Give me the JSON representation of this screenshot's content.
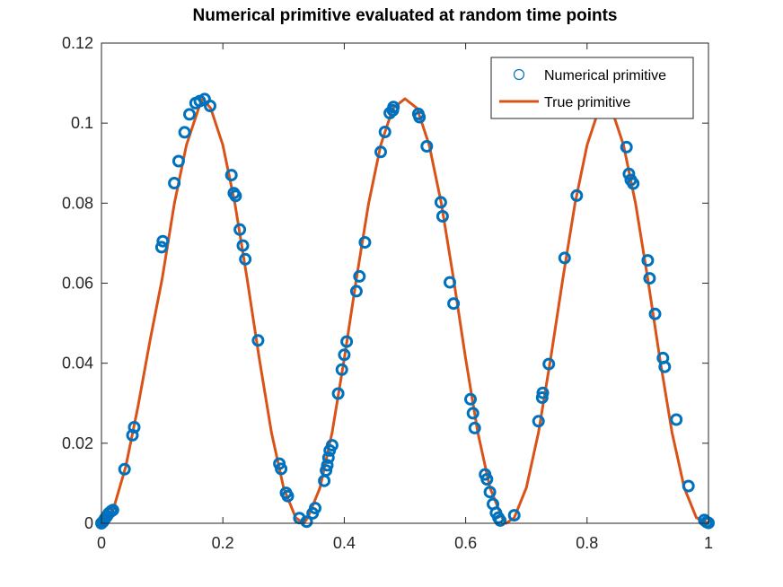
{
  "chart_data": {
    "type": "scatter",
    "title": "Numerical primitive evaluated at random time points",
    "xlabel": "",
    "ylabel": "",
    "xlim": [
      0,
      1
    ],
    "ylim": [
      0,
      0.12
    ],
    "xticks": [
      0,
      0.2,
      0.4,
      0.6,
      0.8,
      1
    ],
    "xtick_labels": [
      "0",
      "0.2",
      "0.4",
      "0.6",
      "0.8",
      "1"
    ],
    "yticks": [
      0,
      0.02,
      0.04,
      0.06,
      0.08,
      0.1,
      0.12
    ],
    "ytick_labels": [
      "0",
      "0.02",
      "0.04",
      "0.06",
      "0.08",
      "0.1",
      "0.12"
    ],
    "grid": false,
    "legend_position": "top-right",
    "series": [
      {
        "name": "Numerical primitive",
        "style": "markers",
        "marker": "circle",
        "color": "#0072BD",
        "x": [
          0.0,
          0.002,
          0.004,
          0.006,
          0.009,
          0.012,
          0.016,
          0.019,
          0.038,
          0.051,
          0.054,
          0.099,
          0.101,
          0.12,
          0.127,
          0.137,
          0.145,
          0.155,
          0.162,
          0.17,
          0.179,
          0.214,
          0.218,
          0.221,
          0.228,
          0.233,
          0.237,
          0.258,
          0.293,
          0.296,
          0.304,
          0.307,
          0.326,
          0.338,
          0.348,
          0.352,
          0.367,
          0.37,
          0.372,
          0.374,
          0.376,
          0.38,
          0.39,
          0.396,
          0.4,
          0.404,
          0.42,
          0.425,
          0.434,
          0.46,
          0.467,
          0.475,
          0.481,
          0.48,
          0.522,
          0.524,
          0.536,
          0.559,
          0.562,
          0.574,
          0.58,
          0.608,
          0.612,
          0.615,
          0.632,
          0.635,
          0.64,
          0.645,
          0.65,
          0.654,
          0.657,
          0.68,
          0.72,
          0.726,
          0.727,
          0.737,
          0.763,
          0.783,
          0.865,
          0.869,
          0.872,
          0.876,
          0.9,
          0.903,
          0.912,
          0.925,
          0.928,
          0.947,
          0.967,
          0.993,
          0.997,
          1.0
        ],
        "y": [
          0.0,
          0.0003,
          0.0007,
          0.0012,
          0.0018,
          0.0025,
          0.003,
          0.0033,
          0.0135,
          0.022,
          0.024,
          0.069,
          0.0705,
          0.085,
          0.0905,
          0.0977,
          0.1022,
          0.105,
          0.1055,
          0.106,
          0.1043,
          0.087,
          0.0825,
          0.0818,
          0.0734,
          0.0694,
          0.066,
          0.0457,
          0.0149,
          0.0136,
          0.0076,
          0.0068,
          0.0013,
          0.0004,
          0.0025,
          0.0038,
          0.0106,
          0.0132,
          0.0145,
          0.0164,
          0.0182,
          0.0195,
          0.0324,
          0.0384,
          0.0421,
          0.0454,
          0.058,
          0.0617,
          0.0702,
          0.0928,
          0.0978,
          0.1025,
          0.104,
          0.1032,
          0.1023,
          0.1015,
          0.0942,
          0.0802,
          0.0767,
          0.0602,
          0.0549,
          0.031,
          0.0275,
          0.0238,
          0.0122,
          0.011,
          0.0078,
          0.0048,
          0.0026,
          0.0014,
          0.0007,
          0.002,
          0.0255,
          0.0314,
          0.0326,
          0.0398,
          0.0663,
          0.0819,
          0.094,
          0.0873,
          0.0858,
          0.0849,
          0.0657,
          0.0612,
          0.0523,
          0.0413,
          0.0391,
          0.0259,
          0.0093,
          0.0008,
          0.0003,
          0.0001
        ]
      },
      {
        "name": "True primitive",
        "style": "line",
        "color": "#D95319",
        "x": [
          0.0,
          0.02,
          0.04,
          0.06,
          0.08,
          0.1,
          0.12,
          0.14,
          0.16,
          0.1667,
          0.18,
          0.2,
          0.22,
          0.24,
          0.26,
          0.28,
          0.3,
          0.32,
          0.3333,
          0.34,
          0.36,
          0.38,
          0.4,
          0.42,
          0.44,
          0.46,
          0.48,
          0.5,
          0.52,
          0.54,
          0.56,
          0.58,
          0.6,
          0.62,
          0.64,
          0.66,
          0.6667,
          0.68,
          0.7,
          0.72,
          0.74,
          0.76,
          0.78,
          0.8,
          0.82,
          0.8333,
          0.84,
          0.86,
          0.88,
          0.9,
          0.92,
          0.94,
          0.96,
          0.98,
          1.0
        ],
        "y": [
          0.0,
          0.0037,
          0.0141,
          0.0291,
          0.0457,
          0.0611,
          0.0798,
          0.0945,
          0.1037,
          0.1061,
          0.1037,
          0.0945,
          0.0798,
          0.0611,
          0.0411,
          0.0227,
          0.0089,
          0.0014,
          0.0,
          0.0014,
          0.0089,
          0.0227,
          0.0411,
          0.0611,
          0.0798,
          0.0945,
          0.1037,
          0.1061,
          0.1037,
          0.0945,
          0.0798,
          0.0611,
          0.0411,
          0.0227,
          0.0089,
          0.0014,
          0.0,
          0.0014,
          0.0089,
          0.0227,
          0.0411,
          0.0611,
          0.0798,
          0.0945,
          0.1037,
          0.1061,
          0.1037,
          0.0945,
          0.0798,
          0.0611,
          0.0411,
          0.0227,
          0.0089,
          0.0014,
          0.0
        ]
      }
    ]
  }
}
